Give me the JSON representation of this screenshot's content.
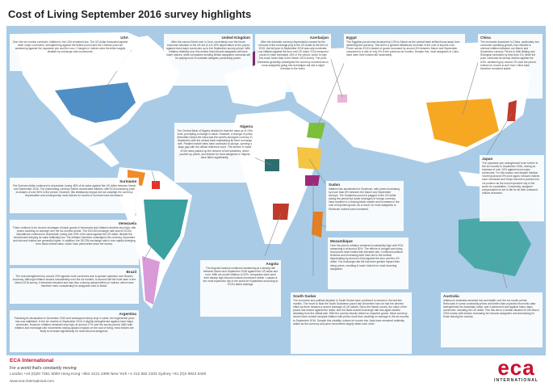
{
  "page": {
    "title": "Cost of Living September 2016 survey highlights"
  },
  "colors": {
    "ocean": "#a9cbe6",
    "land": "#ffffff",
    "brand": "#c8102e"
  },
  "regions": [
    {
      "key": "usa",
      "name": "USA",
      "text": "Over the six months surveyed, inflation in the USA remained low. The US dollar fluctuated against other major currencies, strengthening against the British pound and the Chinese yuan but weakening against the Japanese yen and the euro. Changes in indices were therefore largely dictated by exchange-rate movements."
    },
    {
      "key": "uk",
      "name": "United Kingdom",
      "text": "After the narrow Brexit vote in June, uncertainty over the future economic situation in the UK led to a 9-10% depreciation of the pound against most major currencies up to the September survey period. With inflation relatively low, this means that inbound assignees will have lower indices, while companies sending British assignees overseas will be paying more to maintain assignee purchasing power."
    },
    {
      "key": "azerbaijan",
      "name": "Azerbaijan",
      "text": "After the dramatic currency depreciation caused by the removal of the exchange peg to the US dollar at the end of 2015, the fall year to September 2016 was only moderate. Low inflation against the euro and US dollar. ECA measured prices to have increased 16% in the period, which is high but much lower than in the March 2016 survey. The price increases generally outweighed the currency movements so most assignees going into Azerbaijan will see a slight increase in the index."
    },
    {
      "key": "egypt",
      "name": "Egypt",
      "text": "The Egyptian pound was devalued by 13% in March as the central bank shifted focus away from defending the currency. This led to a general inflationary increase in the cost of imports rose. Prices across ECA's basket of goods increased by around 6% between March and September, compared to a rate of only 3% in the previous six months. Despite this, most assignees in Cairo have seen their indices fall moderately."
    },
    {
      "key": "china",
      "name": "China",
      "text": "The economic slowdown in China, particularly low consumer spending growth, has resulted in minimal inflation between our March and September surveys. Prices in both Beijing and Shanghai increased by less than 1%, while the yuan continued its steady decline against the USD, weakening by around 2% over the period. Indices for moves to and from China have therefore remained stable."
    },
    {
      "key": "nigeria",
      "name": "Nigeria",
      "text": "The Central Bank of Nigeria decided to float the naira as of 20th June, prompting a change in value. However, a change of policy thereafter meant the naira was the world's strongest currency in September with the central bank maintaining its fixed exchange rate. Parallel market rates have continued to plunge, opening a large gap with the official reference more. The decline in value of the naira pushed up the remove of fuel subsidies, which pushed up prices, and indices for most assignees in Nigeria have fallen significantly."
    },
    {
      "key": "suriname",
      "name": "Suriname",
      "text": "The Surinam dollar continued to depreciate, losing 45% of its value against the US dollar between March and September 2016. The plummeting currency further accelerated inflation, with ECA measuring price increases of over 50% in the period. However, this inflationary impact did not outweigh the currency depreciation and consequently most indices for moves to Surinam have decreased."
    },
    {
      "key": "japan",
      "name": "Japan",
      "text": "The Japanese yen strengthened even further in the six months to September 2016, seeing an increase of over 10% against most major currencies. For this reason and despite inflation hovering around 0% once again, inbound indices have increased and Tokyo has been pushed into 1st position as the most expensive city in the world for expatriates. Conversely, assignee compensation is set to fall for all their outbound indices decrease."
    },
    {
      "key": "sudan",
      "name": "Sudan",
      "text": "Inflation has accelerated in Khartoum, with prices increasing by more than 8% between the March and September surveys. The Sudanese pound is pegged to the US dollar during the period but acute shortages of foreign currency have resulted in a thriving black market and increases in the cost of imported goods. As a result, for most assignees in Khartoum indices have increased."
    },
    {
      "key": "venezuela",
      "name": "Venezuela",
      "text": "There continue to be chronic shortages of basic goods in Venezuela and inflation remains very high, with prices doubling on average over the six months period. The DICOM exchange rate used in ECA's calculations continued to depreciate, losing over 40% of its value against the US dollar, despite the central bank keeping its value artificially low. The inflation therefore outweighed the currency movement and inbound indices are generally higher. In addition, the DICOM exchange rate is now rapidly diverging from black market rates, which have plummeted since the survey."
    },
    {
      "key": "mozambique",
      "name": "Mozambique",
      "text": "Over the period, inflation remained consistently high with ECA measuring it at around 30%. The effects of drought and rising food prices have fuelled this elevated rate. Continued political tensions and increasing debt have led to the metical depreciating by around a third against the euro and the US dollar. The exchange rate fell has been greater impact than rising prices, resulting in lower indices for most incoming assignees."
    },
    {
      "key": "brazil",
      "name": "Brazil",
      "text": "The real strengthened by around 20% against most currencies due to greater optimism over Brazil's economy. Although inflation slowed considerably over the six months, to around half the level seen in the March 2016 survey, it remained elevated and was thus a strong upward effect on indices, which have therefore risen considerably for assignees sent to Brazil."
    },
    {
      "key": "angola",
      "name": "Angola",
      "text": "The Angolan kwanza continued weakening at a steady rate between March and September 2016 against the US dollar and euro. With six-month inflation of 20%, companies have seen their steady high inbound indices movement further. Luanda is the most expensive city in the world for expatriates according to ECA's latest rankings."
    },
    {
      "key": "southsudan",
      "name": "South Sudan",
      "text": "The economic and political situation in South Sudan have continued to remain in the last few months. The move to float the South Sudanese pound last December has not had the desired effect as there remains a severe shortage of US dollars. Since the March survey, the value of the pound has halved against the dollar, and the black-market exchange rate has again started deviating from the official rate. With the country heavily reliant on imported goods, these currency issues have created rampant inflation with prices more than doubling on average in the six months to September 2016. Despite this volatility, indices for moves into Juba have remained relatively stable as the currency and price movements largely offset each other."
    },
    {
      "key": "australia",
      "name": "Australia",
      "text": "Inflation in Australia remained low and stable over the six-month period. Rebounds in some commodity prices and better-than-expected economic data strengthened the Australian dollar, and it performed well against many major currencies, including the US dollar. This has led to a similar situation to the March 2016 survey with indices increasing for inbound assignees and decreasing for those leaving the country."
    },
    {
      "key": "argentina",
      "name": "Argentina",
      "text": "Following its devaluation in December 2015 and subsequent steep drop in value, the Argentinian peso has now stabilised. In the six months to September 2016, it slightly strengthened against most major currencies. However, inflation remained very high, at around 17% over the survey period. With both inflation and exchange-rate movements having upward impacts on the cost of living, most indices are likely to increase significantly for most inbound assignees."
    }
  ],
  "footer": {
    "company": "ECA International",
    "tagline": "For a world that's constantly moving",
    "contacts": "London +44 (0)20 7351 5000   Hong Kong +852 2121 2388   New York +1 212 582 2333   Sydney +61 (0)2 8923 5400",
    "website": "www.eca-international.com",
    "logo_big": "eca",
    "logo_small": "INTERNATIONAL"
  }
}
